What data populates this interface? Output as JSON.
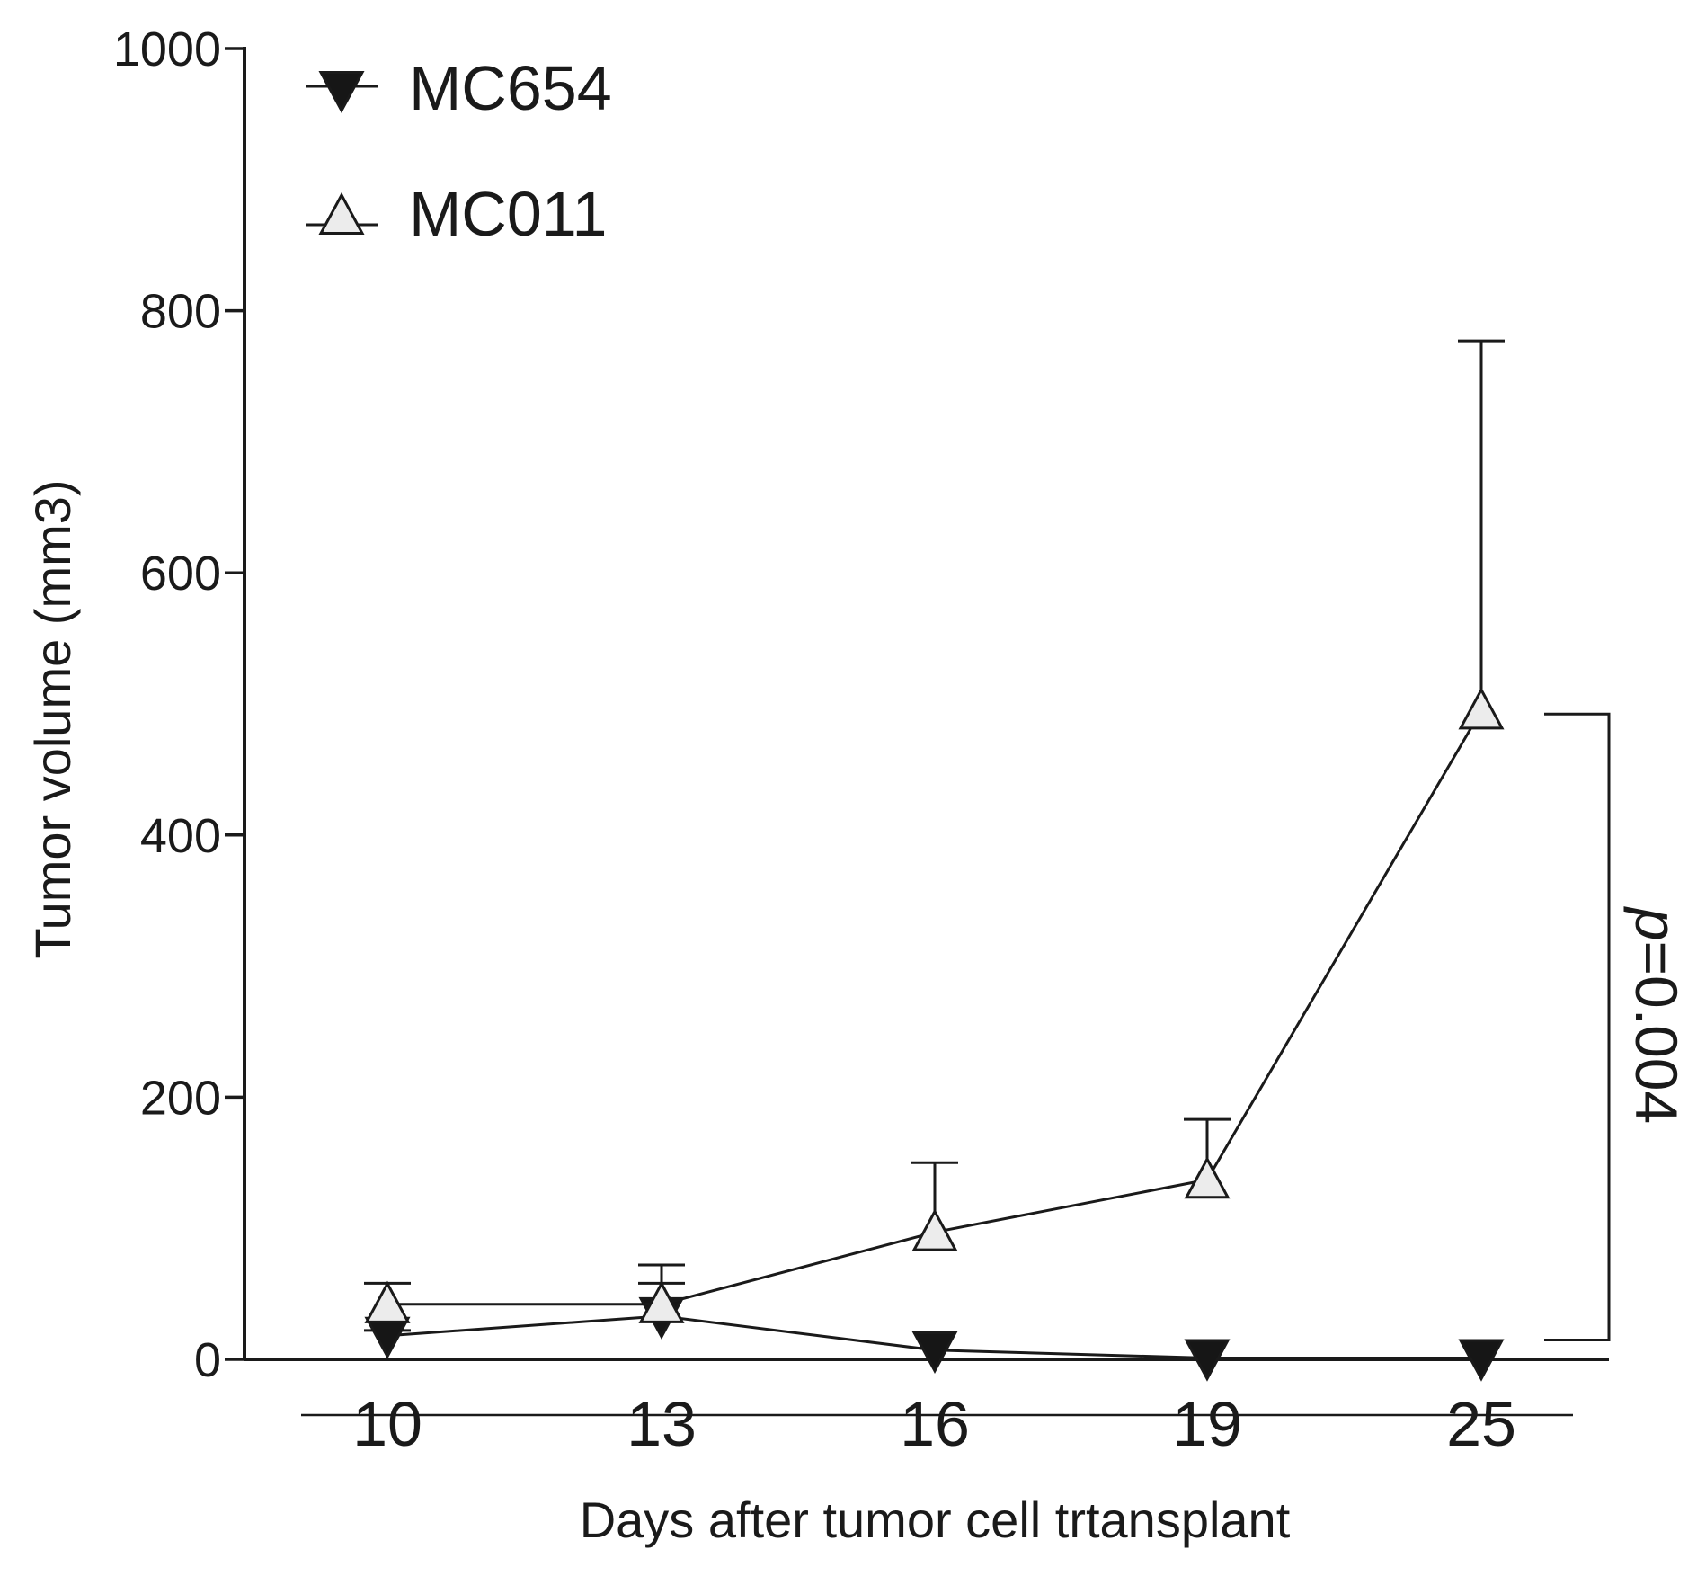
{
  "chart_data": {
    "type": "line",
    "title": "",
    "xlabel": "Days after tumor cell trtansplant",
    "ylabel": "Tumor volume (mm3)",
    "categories": [
      "10",
      "13",
      "16",
      "19",
      "25"
    ],
    "ylim": [
      0,
      1000
    ],
    "yticks": [
      "0",
      "200",
      "400",
      "600",
      "800",
      "1000"
    ],
    "grid": false,
    "legend_position": "top-left",
    "series": [
      {
        "name": "MC654",
        "marker": "filled-down-triangle",
        "color": "#1a1a1a",
        "values": [
          18,
          33,
          7,
          1,
          1
        ],
        "error_upper": [
          22,
          58,
          7,
          1,
          1
        ]
      },
      {
        "name": "MC011",
        "marker": "open-up-triangle",
        "color": "#1a1a1a",
        "values": [
          42,
          42,
          97,
          137,
          495
        ],
        "error_upper": [
          58,
          72,
          150,
          183,
          777
        ]
      }
    ],
    "annotation": {
      "text": "p=0.004",
      "between": [
        "MC011",
        "MC654"
      ],
      "at_category": "25"
    }
  }
}
